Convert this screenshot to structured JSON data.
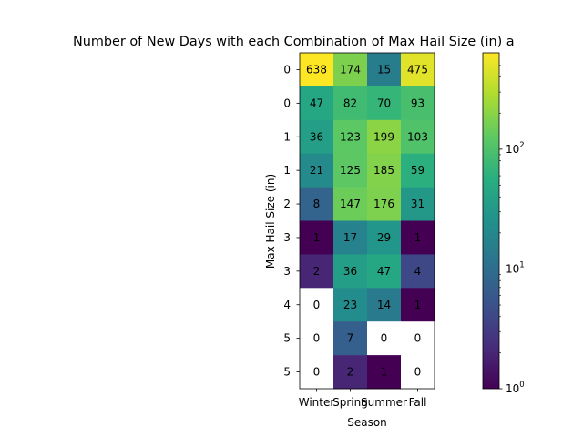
{
  "chart_data": {
    "type": "heatmap",
    "title": "Number of New Days with each Combination of Max Hail Size (in) a",
    "xlabel": "Season",
    "ylabel": "Max Hail Size (in)",
    "x_categories": [
      "Winter",
      "Spring",
      "Summer",
      "Fall"
    ],
    "y_categories": [
      "0",
      "0",
      "1",
      "1",
      "2",
      "3",
      "3",
      "4",
      "5",
      "5"
    ],
    "values": [
      [
        638,
        174,
        15,
        475
      ],
      [
        47,
        82,
        70,
        93
      ],
      [
        36,
        123,
        199,
        103
      ],
      [
        21,
        125,
        185,
        59
      ],
      [
        8,
        147,
        176,
        31
      ],
      [
        1,
        17,
        29,
        1
      ],
      [
        2,
        36,
        47,
        4
      ],
      [
        0,
        23,
        14,
        1
      ],
      [
        0,
        7,
        0,
        0
      ],
      [
        0,
        2,
        1,
        0
      ]
    ],
    "colorscale": "viridis",
    "color_scale_type": "log",
    "color_range": [
      1,
      638
    ],
    "zero_cells_color": "#ffffff",
    "colorbar_ticks": [
      {
        "value": 1,
        "base": "10",
        "exp": "0"
      },
      {
        "value": 10,
        "base": "10",
        "exp": "1"
      },
      {
        "value": 100,
        "base": "10",
        "exp": "2"
      }
    ],
    "grid": false
  }
}
